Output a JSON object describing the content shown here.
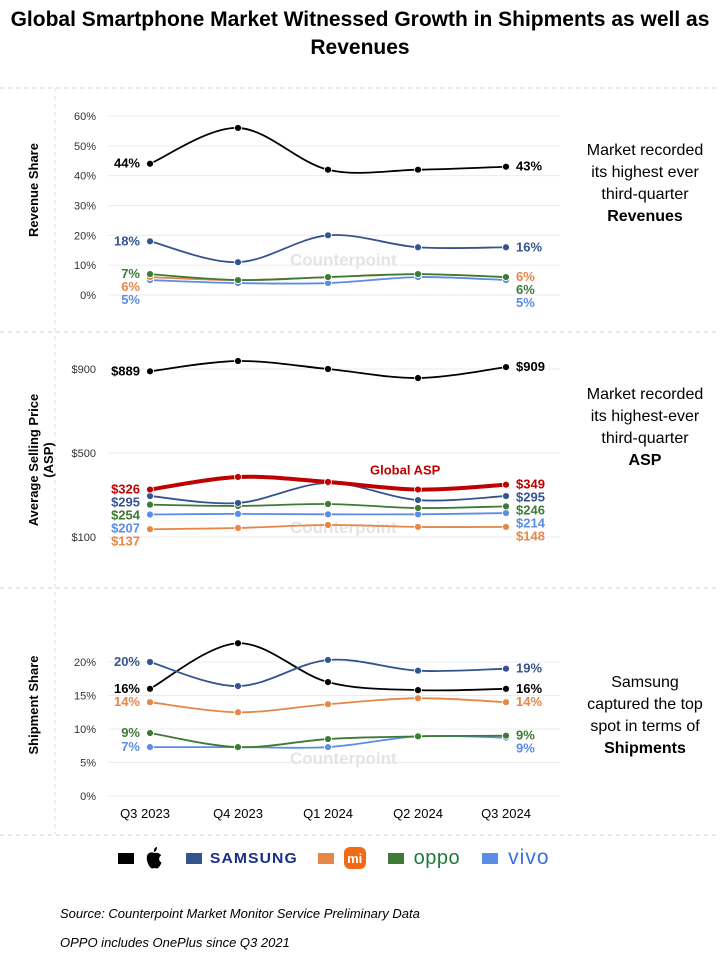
{
  "title": "Global Smartphone Market Witnessed Growth in Shipments as well as Revenues",
  "watermark": "Counterpoint Technology Market Research",
  "colors": {
    "apple": "#000000",
    "samsung": "#34548f",
    "xiaomi": "#e8864a",
    "oppo": "#3d7a35",
    "vivo": "#5b8de8",
    "global": "#c00000"
  },
  "chart_data": [
    {
      "type": "line",
      "ylabel": "Revenue Share",
      "categories": [
        "Q3 2023",
        "Q4 2023",
        "Q1 2024",
        "Q2 2024",
        "Q3 2024"
      ],
      "ylim": [
        0,
        60
      ],
      "yticks": [
        0,
        10,
        20,
        30,
        40,
        50,
        60
      ],
      "ytick_labels": [
        "0%",
        "10%",
        "20%",
        "30%",
        "40%",
        "50%",
        "60%"
      ],
      "grid": true,
      "series": [
        {
          "key": "apple",
          "values": [
            44,
            56,
            42,
            42,
            43
          ],
          "start_label": "44%",
          "end_label": "43%"
        },
        {
          "key": "samsung",
          "values": [
            18,
            11,
            20,
            16,
            16
          ],
          "start_label": "18%",
          "end_label": "16%"
        },
        {
          "key": "oppo",
          "values": [
            7,
            5,
            6,
            7,
            6
          ],
          "start_label": "7%",
          "end_label": "6%"
        },
        {
          "key": "xiaomi",
          "values": [
            6,
            5,
            6,
            7,
            6
          ],
          "start_label": "6%",
          "end_label": "6%"
        },
        {
          "key": "vivo",
          "values": [
            5,
            4,
            4,
            6,
            5
          ],
          "start_label": "5%",
          "end_label": "5%"
        }
      ],
      "note": [
        "Market recorded its highest ever third-quarter",
        "Revenues"
      ]
    },
    {
      "type": "line",
      "ylabel": "Average Selling Price (ASP)",
      "categories": [
        "Q3 2023",
        "Q4 2023",
        "Q1 2024",
        "Q2 2024",
        "Q3 2024"
      ],
      "ylim": [
        100,
        900
      ],
      "yticks": [
        100,
        500,
        900
      ],
      "ytick_labels": [
        "$100",
        "$500",
        "$900"
      ],
      "grid": true,
      "series": [
        {
          "key": "apple",
          "values": [
            889,
            938,
            900,
            857,
            909
          ],
          "start_label": "$889",
          "end_label": "$909"
        },
        {
          "key": "global",
          "name": "Global ASP",
          "values": [
            326,
            386,
            362,
            326,
            349
          ],
          "start_label": "$326",
          "end_label": "$349"
        },
        {
          "key": "samsung",
          "values": [
            295,
            262,
            357,
            276,
            295
          ],
          "start_label": "$295",
          "end_label": "$295"
        },
        {
          "key": "oppo",
          "values": [
            254,
            248,
            257,
            238,
            246
          ],
          "start_label": "$254",
          "end_label": "$246"
        },
        {
          "key": "vivo",
          "values": [
            207,
            210,
            208,
            208,
            214
          ],
          "start_label": "$207",
          "end_label": "$214"
        },
        {
          "key": "xiaomi",
          "values": [
            137,
            143,
            157,
            148,
            148
          ],
          "start_label": "$137",
          "end_label": "$148"
        }
      ],
      "note": [
        "Market recorded its highest-ever third-quarter",
        "ASP"
      ]
    },
    {
      "type": "line",
      "ylabel": "Shipment Share",
      "categories": [
        "Q3 2023",
        "Q4 2023",
        "Q1 2024",
        "Q2 2024",
        "Q3 2024"
      ],
      "ylim": [
        0,
        20
      ],
      "yticks": [
        0,
        5,
        10,
        15,
        20
      ],
      "ytick_labels": [
        "0%",
        "5%",
        "10%",
        "15%",
        "20%"
      ],
      "grid": true,
      "series": [
        {
          "key": "samsung",
          "values": [
            20,
            16.4,
            20.3,
            18.7,
            19
          ],
          "start_label": "20%",
          "end_label": "19%"
        },
        {
          "key": "apple",
          "values": [
            16,
            22.8,
            17,
            15.8,
            16
          ],
          "start_label": "16%",
          "end_label": "16%"
        },
        {
          "key": "xiaomi",
          "values": [
            14,
            12.5,
            13.7,
            14.6,
            14
          ],
          "start_label": "14%",
          "end_label": "14%"
        },
        {
          "key": "oppo",
          "values": [
            9.4,
            7.3,
            8.5,
            8.9,
            9
          ],
          "start_label": "9%",
          "end_label": "9%"
        },
        {
          "key": "vivo",
          "values": [
            7.3,
            7.3,
            7.3,
            8.9,
            8.7
          ],
          "start_label": "7%",
          "end_label": "9%"
        }
      ],
      "note": [
        "Samsung captured the top spot in terms of",
        "Shipments"
      ]
    }
  ],
  "legend": [
    {
      "key": "apple",
      "label": "Apple"
    },
    {
      "key": "samsung",
      "label": "SAMSUNG"
    },
    {
      "key": "xiaomi",
      "label": "mi"
    },
    {
      "key": "oppo",
      "label": "oppo"
    },
    {
      "key": "vivo",
      "label": "vivo"
    }
  ],
  "footnotes": [
    "Source: Counterpoint Market Monitor Service Preliminary Data",
    "OPPO includes OnePlus since Q3 2021"
  ]
}
